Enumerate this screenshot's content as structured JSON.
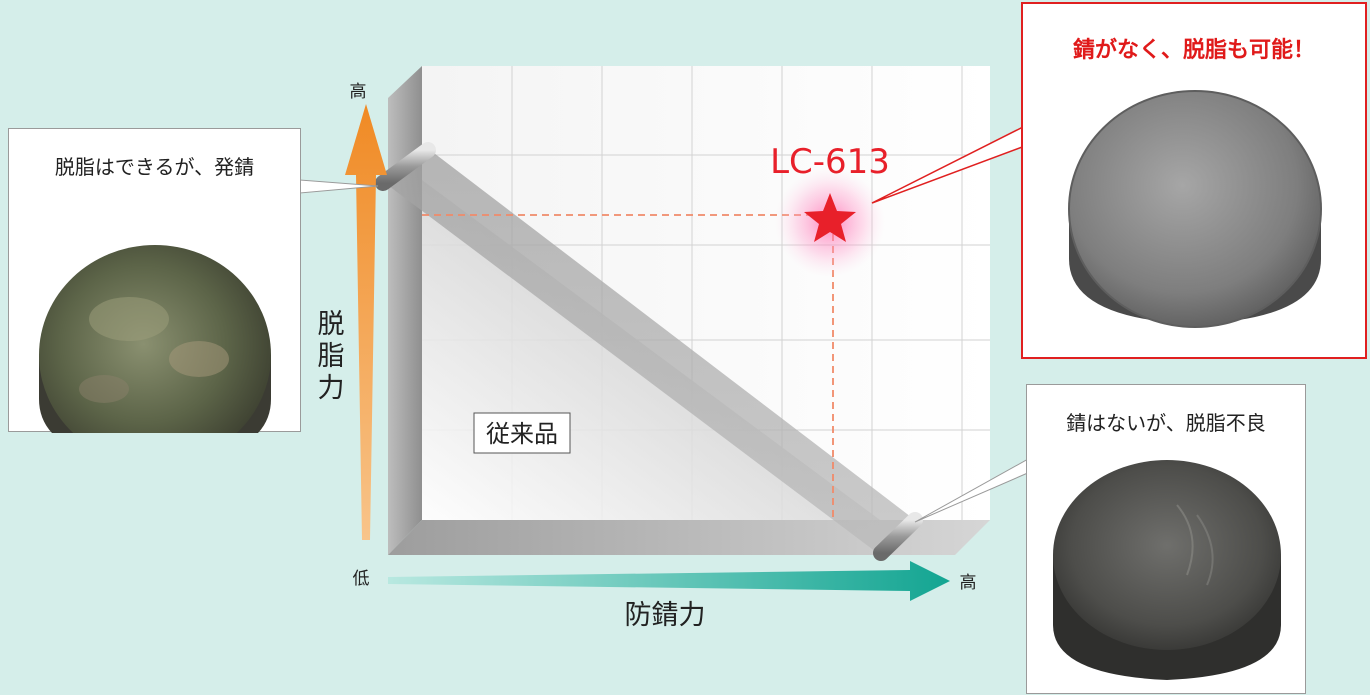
{
  "callouts": {
    "left": "脱脂はできるが、発錆",
    "right_bottom": "錆はないが、脱脂不良",
    "top_right": "錆がなく、脱脂も可能！"
  },
  "axes": {
    "y_high": "高",
    "y_low": "低",
    "y_label": [
      "脱",
      "脂",
      "力"
    ],
    "x_high": "高",
    "x_label": "防錆力"
  },
  "product_label": "LC-613",
  "conventional_label": "従来品",
  "colors": {
    "background": "#d5eeea",
    "y_arrow": "#f08a24",
    "x_arrow": "#1aa898",
    "highlight": "#e01a1a"
  }
}
